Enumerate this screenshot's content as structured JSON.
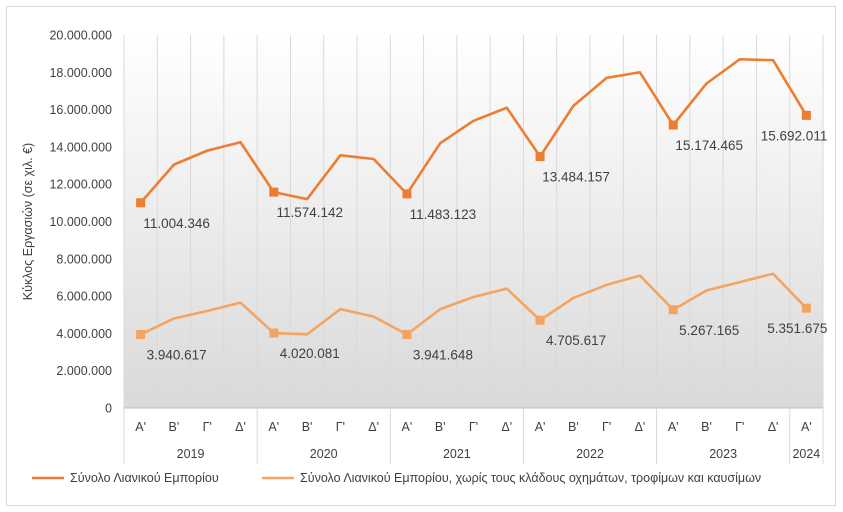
{
  "chart_data": {
    "type": "line",
    "ylabel": "Κύκλος Εργασιών (σε χιλ. €)",
    "ylim": [
      0,
      20000000
    ],
    "yticks": [
      "0",
      "2.000.000",
      "4.000.000",
      "6.000.000",
      "8.000.000",
      "10.000.000",
      "12.000.000",
      "14.000.000",
      "16.000.000",
      "18.000.000",
      "20.000.000"
    ],
    "grid": "vertical",
    "legend_position": "bottom",
    "quarters": [
      "Α'",
      "Β'",
      "Γ'",
      "Δ'",
      "Α'",
      "Β'",
      "Γ'",
      "Δ'",
      "Α'",
      "Β'",
      "Γ'",
      "Δ'",
      "Α'",
      "Β'",
      "Γ'",
      "Δ'",
      "Α'",
      "Β'",
      "Γ'",
      "Δ'",
      "Α'"
    ],
    "years": [
      {
        "label": "2019",
        "count": 4
      },
      {
        "label": "2020",
        "count": 4
      },
      {
        "label": "2021",
        "count": 4
      },
      {
        "label": "2022",
        "count": 4
      },
      {
        "label": "2023",
        "count": 4
      },
      {
        "label": "2024",
        "count": 1
      }
    ],
    "series": [
      {
        "name": "Σύνολο Λιανικού Εμπορίου",
        "color": "#ED7D31",
        "values": [
          11004346,
          13050000,
          13800000,
          14250000,
          11574142,
          11200000,
          13550000,
          13350000,
          11483123,
          14200000,
          15400000,
          16100000,
          13484157,
          16200000,
          17700000,
          18000000,
          15174465,
          17400000,
          18700000,
          18650000,
          15692011
        ],
        "labels": [
          {
            "index": 0,
            "text": "11.004.346"
          },
          {
            "index": 4,
            "text": "11.574.142"
          },
          {
            "index": 8,
            "text": "11.483.123"
          },
          {
            "index": 12,
            "text": "13.484.157"
          },
          {
            "index": 16,
            "text": "15.174.465"
          },
          {
            "index": 20,
            "text": "15.692.011"
          }
        ]
      },
      {
        "name": "Σύνολο Λιανικού Εμπορίου, χωρίς τους κλάδους οχημάτων, τροφίμων και καυσίμων",
        "color": "#F4A460",
        "values": [
          3940617,
          4800000,
          5200000,
          5650000,
          4020081,
          3950000,
          5300000,
          4900000,
          3941648,
          5300000,
          5950000,
          6400000,
          4705617,
          5900000,
          6600000,
          7100000,
          5267165,
          6300000,
          6750000,
          7200000,
          5351675
        ],
        "labels": [
          {
            "index": 0,
            "text": "3.940.617"
          },
          {
            "index": 4,
            "text": "4.020.081"
          },
          {
            "index": 8,
            "text": "3.941.648"
          },
          {
            "index": 12,
            "text": "4.705.617"
          },
          {
            "index": 16,
            "text": "5.267.165"
          },
          {
            "index": 20,
            "text": "5.351.675"
          }
        ]
      }
    ]
  }
}
